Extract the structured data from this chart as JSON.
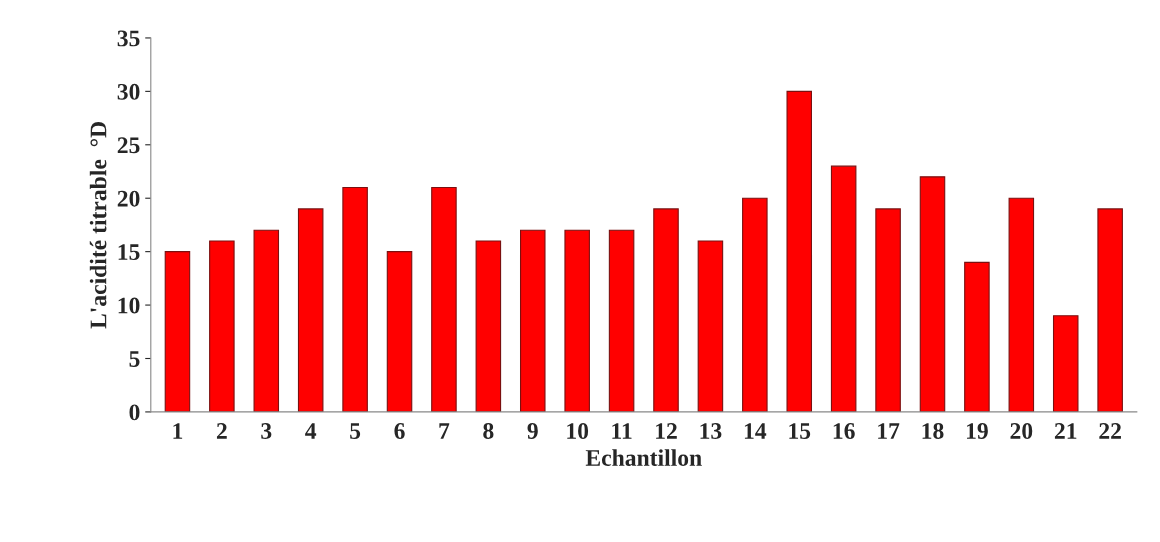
{
  "chart_data": {
    "type": "bar",
    "xlabel": "Echantillon",
    "ylabel": "L'acidité titrable  °D",
    "categories": [
      "1",
      "2",
      "3",
      "4",
      "5",
      "6",
      "7",
      "8",
      "9",
      "10",
      "11",
      "12",
      "13",
      "14",
      "15",
      "16",
      "17",
      "18",
      "19",
      "20",
      "21",
      "22"
    ],
    "values": [
      15,
      16,
      17,
      19,
      21,
      15,
      21,
      16,
      17,
      17,
      17,
      19,
      16,
      20,
      30,
      23,
      19,
      22,
      14,
      20,
      9,
      19
    ],
    "color": "#ff0000",
    "ylim": [
      0,
      35
    ],
    "yticks": [
      0,
      5,
      10,
      15,
      20,
      25,
      30,
      35
    ],
    "grid": false,
    "legend": false
  }
}
